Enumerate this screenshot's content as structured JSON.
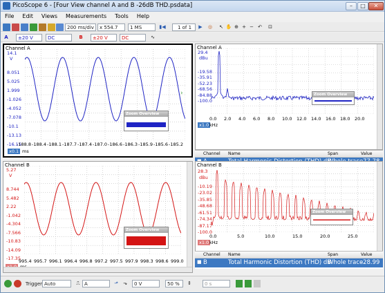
{
  "title": "PicoScope 6 - [Four View channel A and B -26dB THD.psdata]",
  "menu": [
    "File",
    "Edit",
    "Views",
    "Measurements",
    "Tools",
    "Help"
  ],
  "toolbar1": {
    "timebase": "200 ms/div",
    "zoom": "x 554.7",
    "samples": "1 MS",
    "page": "1 of 1"
  },
  "toolbar2": {
    "chA_range": "±20 V",
    "chA_coupling": "DC",
    "chB_label": "B",
    "chB_range": "±20 V",
    "chB_coupling": "DC"
  },
  "panels": {
    "a_scope": {
      "title": "Channel A",
      "max": "14.1",
      "unit": "V",
      "yticks": [
        "8.051",
        "5.025",
        "1.999",
        "-1.026",
        "-4.052",
        "-7.078",
        "-10.1",
        "-13.13",
        "-16.15"
      ],
      "xticks": [
        "-188.8",
        "-188.4",
        "-188.1",
        "-187.7",
        "-187.4",
        "-187.0",
        "-186.6",
        "-186.3",
        "-185.9",
        "-185.6",
        "-185.2"
      ],
      "xunit": "ms",
      "xoff": "x0.1"
    },
    "a_spec": {
      "title": "Channel A",
      "max": "29.4",
      "unit": "dBu",
      "yticks": [
        "-19.58",
        "-35.91",
        "-52.23",
        "-68.56",
        "-84.88",
        "-100.0"
      ],
      "xticks": [
        "0.0",
        "2.0",
        "4.0",
        "6.0",
        "8.0",
        "10.0",
        "12.0",
        "14.0",
        "16.0",
        "18.0",
        "20.0"
      ],
      "xunit": "kHz",
      "xoff": "x1.0"
    },
    "b_scope": {
      "title": "Channel B",
      "max": "5.27",
      "unit": "V",
      "yticks": [
        "8.744",
        "5.482",
        "2.22",
        "-1.042",
        "-4.304",
        "-7.566",
        "-10.83",
        "-14.09",
        "-17.35"
      ],
      "xticks": [
        "995.4",
        "995.7",
        "996.1",
        "996.4",
        "996.8",
        "997.2",
        "997.5",
        "997.9",
        "998.3",
        "998.6",
        "999.0"
      ],
      "xunit": "ms",
      "xoff": "x1.0"
    },
    "b_spec": {
      "title": "Channel B",
      "max": "28.3",
      "unit": "dBu",
      "yticks": [
        "-10.19",
        "-23.02",
        "-35.85",
        "-48.68",
        "-61.51",
        "-74.34",
        "-87.17",
        "-100.0"
      ],
      "xticks": [
        "0.0",
        "5.0",
        "10.0",
        "15.0",
        "20.0",
        "25.0"
      ],
      "xunit": "kHz",
      "xoff": "x1.0"
    }
  },
  "zoom_overview": "Zoom Overview",
  "measA": {
    "h_channel": "Channel",
    "h_name": "Name",
    "h_span": "Span",
    "h_value": "Value",
    "channel": "A",
    "name": "Total Harmonic Distortion (THD) dB",
    "span": "Whole trace",
    "value": "-77.78"
  },
  "measB": {
    "h_channel": "Channel",
    "h_name": "Name",
    "h_span": "Span",
    "h_value": "Value",
    "channel": "B",
    "name": "Total Harmonic Distortion (THD) dB",
    "span": "Whole trace",
    "value": "-28.99"
  },
  "status": {
    "trigger_label": "Trigger",
    "trigger_mode": "Auto",
    "trigger_source": "A",
    "trigger_level": "0 V",
    "pre_trigger": "50 %",
    "delay": "0 s"
  },
  "colors": {
    "chA": "#1f24c4",
    "chB": "#d41414",
    "selection": "#3d79c2"
  }
}
